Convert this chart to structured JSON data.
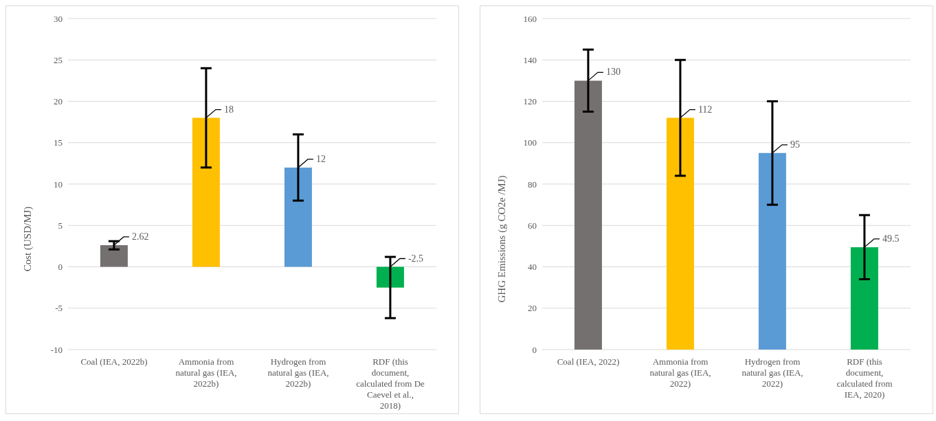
{
  "chart_data": [
    {
      "type": "bar",
      "ylabel": "Cost (USD/MJ)",
      "categories": [
        "Coal (IEA, 2022b)",
        "Ammonia from natural gas (IEA, 2022b)",
        "Hydrogen from natural gas (IEA, 2022b)",
        "RDF (this document, calculated from De Caevel et al., 2018)"
      ],
      "values": [
        2.62,
        18,
        12,
        -2.5
      ],
      "colors": [
        "#757070",
        "#ffc000",
        "#5b9bd5",
        "#00b050"
      ],
      "errors": [
        [
          2.1,
          3.1
        ],
        [
          12,
          24
        ],
        [
          8,
          16
        ],
        [
          -6.2,
          1.2
        ]
      ],
      "ylim": [
        -10,
        30
      ],
      "yticks": [
        -10,
        -5,
        0,
        5,
        10,
        15,
        20,
        25,
        30
      ],
      "grid": "y",
      "data_labels": true
    },
    {
      "type": "bar",
      "ylabel": "GHG Emissions (g CO2e /MJ)",
      "categories": [
        "Coal (IEA, 2022)",
        "Ammonia from natural gas (IEA, 2022)",
        "Hydrogen from natural gas (IEA, 2022)",
        "RDF (this document, calculated from IEA, 2020)"
      ],
      "values": [
        130,
        112,
        95,
        49.5
      ],
      "colors": [
        "#757070",
        "#ffc000",
        "#5b9bd5",
        "#00b050"
      ],
      "errors": [
        [
          115,
          145
        ],
        [
          84,
          140
        ],
        [
          70,
          120
        ],
        [
          34,
          65
        ]
      ],
      "ylim": [
        0,
        160
      ],
      "yticks": [
        0,
        20,
        40,
        60,
        80,
        100,
        120,
        140,
        160
      ],
      "grid": "y",
      "data_labels": true
    }
  ]
}
